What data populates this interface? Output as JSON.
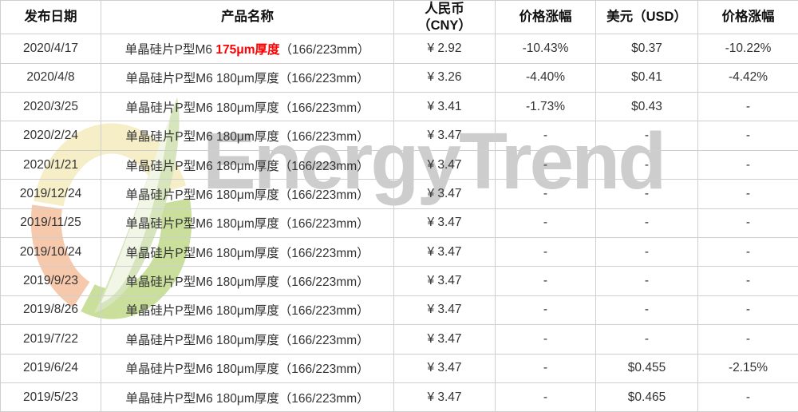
{
  "watermark": {
    "text": "EnergyTrend",
    "text_color": "#c8c8c8",
    "logo_colors": {
      "yellow_arc": "#f6eec6",
      "orange_arc": "#f6c9ad",
      "green_arc": "#c9df9b",
      "leaf": "#d6e5bb"
    }
  },
  "table": {
    "headers": [
      {
        "line1": "发布日期",
        "line2": ""
      },
      {
        "line1": "产品名称",
        "line2": ""
      },
      {
        "line1": "人民币",
        "line2": "（CNY）"
      },
      {
        "line1": "价格涨幅",
        "line2": ""
      },
      {
        "line1": "美元（USD）",
        "line2": ""
      },
      {
        "line1": "价格涨幅",
        "line2": ""
      }
    ],
    "highlight_color": "#fe0000",
    "rows": [
      {
        "date": "2020/4/17",
        "product_pre": "单晶硅片P型M6 ",
        "product_red": "175μm厚度",
        "product_post": "（166/223mm）",
        "cny": "¥ 2.92",
        "cny_change": "-10.43%",
        "usd": "$0.37",
        "usd_change": "-10.22%"
      },
      {
        "date": "2020/4/8",
        "product_pre": "单晶硅片P型M6 180μm厚度（166/223mm）",
        "product_red": "",
        "product_post": "",
        "cny": "¥ 3.26",
        "cny_change": "-4.40%",
        "usd": "$0.41",
        "usd_change": "-4.42%"
      },
      {
        "date": "2020/3/25",
        "product_pre": "单晶硅片P型M6 180μm厚度（166/223mm）",
        "product_red": "",
        "product_post": "",
        "cny": "¥ 3.41",
        "cny_change": "-1.73%",
        "usd": "$0.43",
        "usd_change": "-"
      },
      {
        "date": "2020/2/24",
        "product_pre": "单晶硅片P型M6 180μm厚度（166/223mm）",
        "product_red": "",
        "product_post": "",
        "cny": "¥ 3.47",
        "cny_change": "-",
        "usd": "-",
        "usd_change": "-"
      },
      {
        "date": "2020/1/21",
        "product_pre": "单晶硅片P型M6 180μm厚度（166/223mm）",
        "product_red": "",
        "product_post": "",
        "cny": "¥ 3.47",
        "cny_change": "-",
        "usd": "-",
        "usd_change": "-"
      },
      {
        "date": "2019/12/24",
        "product_pre": "单晶硅片P型M6 180μm厚度（166/223mm）",
        "product_red": "",
        "product_post": "",
        "cny": "¥ 3.47",
        "cny_change": "-",
        "usd": "-",
        "usd_change": "-"
      },
      {
        "date": "2019/11/25",
        "product_pre": "单晶硅片P型M6 180μm厚度（166/223mm）",
        "product_red": "",
        "product_post": "",
        "cny": "¥ 3.47",
        "cny_change": "-",
        "usd": "-",
        "usd_change": "-"
      },
      {
        "date": "2019/10/24",
        "product_pre": "单晶硅片P型M6 180μm厚度（166/223mm）",
        "product_red": "",
        "product_post": "",
        "cny": "¥ 3.47",
        "cny_change": "-",
        "usd": "-",
        "usd_change": "-"
      },
      {
        "date": "2019/9/23",
        "product_pre": "单晶硅片P型M6 180μm厚度（166/223mm）",
        "product_red": "",
        "product_post": "",
        "cny": "¥ 3.47",
        "cny_change": "-",
        "usd": "-",
        "usd_change": "-"
      },
      {
        "date": "2019/8/26",
        "product_pre": "单晶硅片P型M6 180μm厚度（166/223mm）",
        "product_red": "",
        "product_post": "",
        "cny": "¥ 3.47",
        "cny_change": "-",
        "usd": "-",
        "usd_change": "-"
      },
      {
        "date": "2019/7/22",
        "product_pre": "单晶硅片P型M6 180μm厚度（166/223mm）",
        "product_red": "",
        "product_post": "",
        "cny": "¥ 3.47",
        "cny_change": "-",
        "usd": "-",
        "usd_change": "-"
      },
      {
        "date": "2019/6/24",
        "product_pre": "单晶硅片P型M6 180μm厚度（166/223mm）",
        "product_red": "",
        "product_post": "",
        "cny": "¥ 3.47",
        "cny_change": "-",
        "usd": "$0.455",
        "usd_change": "-2.15%"
      },
      {
        "date": "2019/5/23",
        "product_pre": "单晶硅片P型M6 180μm厚度（166/223mm）",
        "product_red": "",
        "product_post": "",
        "cny": "¥ 3.47",
        "cny_change": "-",
        "usd": "$0.465",
        "usd_change": "-"
      }
    ]
  }
}
